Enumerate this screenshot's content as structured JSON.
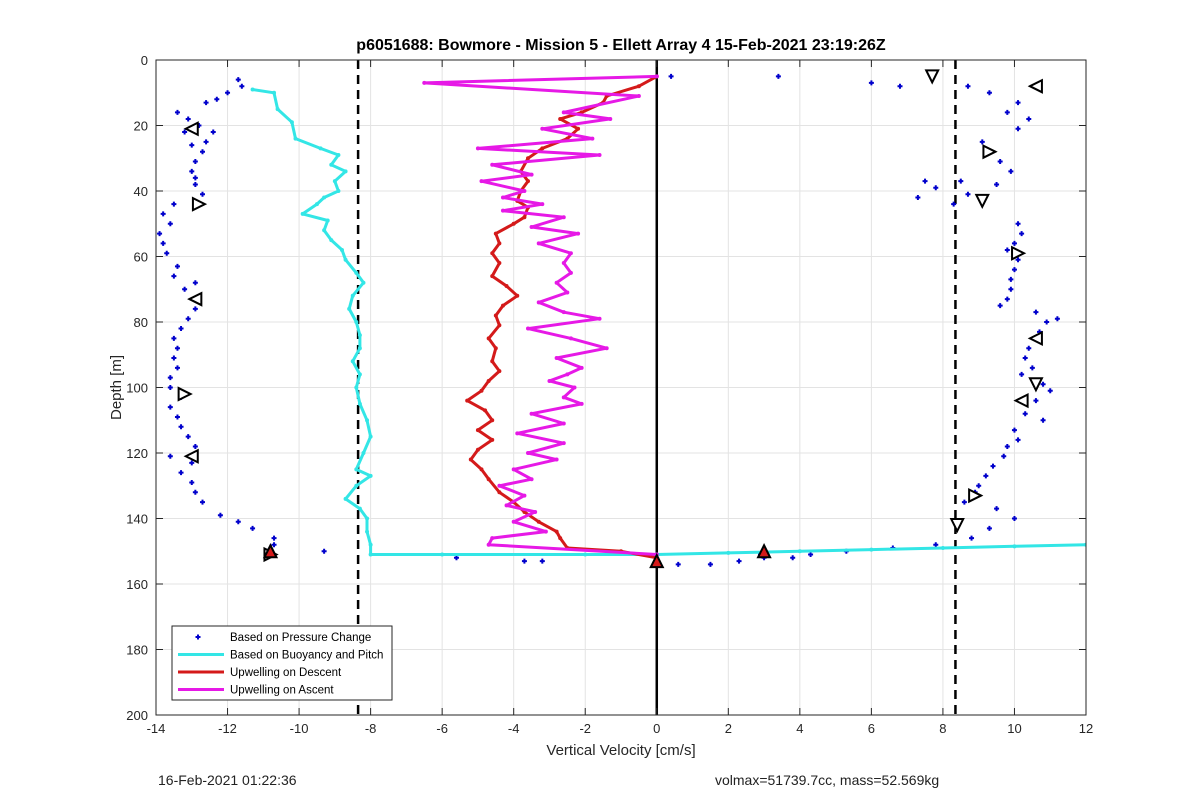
{
  "chart_data": {
    "type": "line",
    "title": "p6051688: Bowmore - Mission 5 - Ellett Array 4 15-Feb-2021 23:19:26Z",
    "xlabel": "Vertical Velocity [cm/s]",
    "ylabel": "Depth [m]",
    "xlim": [
      -14,
      12
    ],
    "ylim": [
      0,
      200
    ],
    "y_reversed": true,
    "grid": true,
    "xticks": [
      -14,
      -12,
      -10,
      -8,
      -6,
      -4,
      -2,
      0,
      2,
      4,
      6,
      8,
      10,
      12
    ],
    "yticks": [
      0,
      20,
      40,
      60,
      80,
      100,
      120,
      140,
      160,
      180,
      200
    ],
    "vlines": [
      {
        "x": -8.35,
        "style": "dashed"
      },
      {
        "x": 0,
        "style": "solid"
      },
      {
        "x": 8.35,
        "style": "dashed"
      }
    ],
    "legend_position": "bottom-left",
    "legend": [
      "Based on Pressure Change",
      "Based on Buoyancy and Pitch",
      "Upwelling on Descent",
      "Upwelling on Ascent"
    ],
    "series": [
      {
        "name": "Based on Pressure Change",
        "kind": "scatter",
        "color": "#0000cc",
        "points": [
          [
            -11.7,
            6
          ],
          [
            -11.6,
            8
          ],
          [
            -12.0,
            10
          ],
          [
            -12.3,
            12
          ],
          [
            -12.6,
            13
          ],
          [
            -13.4,
            16
          ],
          [
            -13.1,
            18
          ],
          [
            -12.8,
            20
          ],
          [
            -13.2,
            22
          ],
          [
            -12.4,
            22
          ],
          [
            -12.6,
            25
          ],
          [
            -13.0,
            26
          ],
          [
            -12.7,
            28
          ],
          [
            -12.9,
            31
          ],
          [
            -13.0,
            34
          ],
          [
            -12.9,
            36
          ],
          [
            -12.9,
            38
          ],
          [
            -12.7,
            41
          ],
          [
            -13.5,
            44
          ],
          [
            -13.8,
            47
          ],
          [
            -13.6,
            50
          ],
          [
            -13.9,
            53
          ],
          [
            -13.8,
            56
          ],
          [
            -13.7,
            59
          ],
          [
            -13.4,
            63
          ],
          [
            -13.5,
            66
          ],
          [
            -12.9,
            68
          ],
          [
            -13.2,
            70
          ],
          [
            -12.9,
            73
          ],
          [
            -12.9,
            76
          ],
          [
            -13.1,
            79
          ],
          [
            -13.3,
            82
          ],
          [
            -13.5,
            85
          ],
          [
            -13.4,
            88
          ],
          [
            -13.5,
            91
          ],
          [
            -13.4,
            94
          ],
          [
            -13.6,
            97
          ],
          [
            -13.6,
            100
          ],
          [
            -13.3,
            103
          ],
          [
            -13.6,
            106
          ],
          [
            -13.4,
            109
          ],
          [
            -13.3,
            112
          ],
          [
            -13.1,
            115
          ],
          [
            -12.9,
            118
          ],
          [
            -13.6,
            121
          ],
          [
            -13.0,
            123
          ],
          [
            -13.3,
            126
          ],
          [
            -13.0,
            129
          ],
          [
            -12.9,
            132
          ],
          [
            -12.7,
            135
          ],
          [
            -12.2,
            139
          ],
          [
            -11.7,
            141
          ],
          [
            -11.3,
            143
          ],
          [
            -10.7,
            146
          ],
          [
            -10.7,
            148
          ],
          [
            -10.9,
            150
          ],
          [
            -9.3,
            150
          ],
          [
            -5.6,
            152
          ],
          [
            -3.7,
            153
          ],
          [
            -3.2,
            153
          ],
          [
            0.4,
            5
          ],
          [
            3.4,
            5
          ],
          [
            6.0,
            7
          ],
          [
            6.8,
            8
          ],
          [
            8.7,
            8
          ],
          [
            9.3,
            10
          ],
          [
            10.1,
            13
          ],
          [
            9.8,
            16
          ],
          [
            10.4,
            18
          ],
          [
            10.1,
            21
          ],
          [
            9.1,
            25
          ],
          [
            9.3,
            28
          ],
          [
            9.6,
            31
          ],
          [
            9.9,
            34
          ],
          [
            7.5,
            37
          ],
          [
            7.8,
            39
          ],
          [
            8.5,
            37
          ],
          [
            9.5,
            38
          ],
          [
            8.7,
            41
          ],
          [
            7.3,
            42
          ],
          [
            8.3,
            44
          ],
          [
            10.1,
            50
          ],
          [
            10.2,
            53
          ],
          [
            10.0,
            56
          ],
          [
            9.8,
            58
          ],
          [
            10.1,
            61
          ],
          [
            10.0,
            64
          ],
          [
            9.9,
            67
          ],
          [
            9.9,
            70
          ],
          [
            9.8,
            73
          ],
          [
            9.6,
            75
          ],
          [
            10.6,
            77
          ],
          [
            10.9,
            80
          ],
          [
            11.2,
            79
          ],
          [
            10.7,
            83
          ],
          [
            10.4,
            88
          ],
          [
            10.3,
            91
          ],
          [
            10.5,
            94
          ],
          [
            10.2,
            96
          ],
          [
            10.8,
            99
          ],
          [
            11.0,
            101
          ],
          [
            10.6,
            104
          ],
          [
            10.3,
            108
          ],
          [
            10.8,
            110
          ],
          [
            10.0,
            113
          ],
          [
            10.1,
            116
          ],
          [
            9.8,
            118
          ],
          [
            9.7,
            121
          ],
          [
            9.4,
            124
          ],
          [
            9.2,
            127
          ],
          [
            9.0,
            130
          ],
          [
            8.9,
            132
          ],
          [
            8.6,
            135
          ],
          [
            9.5,
            137
          ],
          [
            10.0,
            140
          ],
          [
            9.3,
            143
          ],
          [
            8.8,
            146
          ],
          [
            7.8,
            148
          ],
          [
            6.6,
            149
          ],
          [
            5.3,
            150
          ],
          [
            4.3,
            151
          ],
          [
            3.8,
            152
          ],
          [
            3.0,
            152
          ],
          [
            2.3,
            153
          ],
          [
            1.5,
            154
          ],
          [
            0.6,
            154
          ],
          [
            2.9,
            151
          ],
          [
            -10.8,
            151
          ]
        ]
      },
      {
        "name": "Based on Buoyancy and Pitch",
        "kind": "line",
        "color": "#33e6e6",
        "points": [
          [
            -11.3,
            9
          ],
          [
            -10.7,
            10
          ],
          [
            -10.6,
            15
          ],
          [
            -10.2,
            19
          ],
          [
            -10.1,
            24
          ],
          [
            -9.4,
            27
          ],
          [
            -8.9,
            29
          ],
          [
            -9.1,
            32
          ],
          [
            -8.7,
            34
          ],
          [
            -9.0,
            37
          ],
          [
            -8.9,
            40
          ],
          [
            -9.3,
            42
          ],
          [
            -9.5,
            44
          ],
          [
            -9.9,
            47
          ],
          [
            -9.2,
            49
          ],
          [
            -9.3,
            52
          ],
          [
            -9.1,
            55
          ],
          [
            -8.8,
            58
          ],
          [
            -8.7,
            61
          ],
          [
            -8.4,
            65
          ],
          [
            -8.2,
            68
          ],
          [
            -8.5,
            72
          ],
          [
            -8.6,
            76
          ],
          [
            -8.4,
            80
          ],
          [
            -8.3,
            84
          ],
          [
            -8.3,
            88
          ],
          [
            -8.5,
            92
          ],
          [
            -8.3,
            96
          ],
          [
            -8.4,
            100
          ],
          [
            -8.3,
            105
          ],
          [
            -8.1,
            110
          ],
          [
            -8.0,
            115
          ],
          [
            -8.2,
            120
          ],
          [
            -8.4,
            125
          ],
          [
            -8.0,
            127
          ],
          [
            -8.4,
            130
          ],
          [
            -8.7,
            134
          ],
          [
            -8.3,
            137
          ],
          [
            -8.1,
            140
          ],
          [
            -8.1,
            144
          ],
          [
            -8.0,
            148
          ],
          [
            -8.0,
            151
          ],
          [
            -6.0,
            151
          ],
          [
            -2.0,
            151
          ],
          [
            0,
            151
          ],
          [
            2.0,
            150.5
          ],
          [
            4.0,
            150
          ],
          [
            6.0,
            149.5
          ],
          [
            8.0,
            149
          ],
          [
            10.0,
            148.5
          ],
          [
            12.0,
            148
          ]
        ]
      },
      {
        "name": "Upwelling on Descent",
        "kind": "line",
        "color": "#d41a1a",
        "points": [
          [
            0,
            5
          ],
          [
            -0.5,
            8
          ],
          [
            -1.4,
            11
          ],
          [
            -1.5,
            13
          ],
          [
            -2.1,
            16
          ],
          [
            -2.7,
            18
          ],
          [
            -2.2,
            21
          ],
          [
            -2.5,
            24
          ],
          [
            -3.2,
            27
          ],
          [
            -3.6,
            30
          ],
          [
            -3.8,
            34
          ],
          [
            -3.6,
            37
          ],
          [
            -3.8,
            40
          ],
          [
            -3.9,
            43
          ],
          [
            -3.6,
            45
          ],
          [
            -3.7,
            48
          ],
          [
            -4.0,
            50
          ],
          [
            -4.5,
            53
          ],
          [
            -4.4,
            56
          ],
          [
            -4.6,
            59
          ],
          [
            -4.4,
            62
          ],
          [
            -4.6,
            66
          ],
          [
            -4.2,
            69
          ],
          [
            -3.9,
            72
          ],
          [
            -4.3,
            75
          ],
          [
            -4.5,
            78
          ],
          [
            -4.4,
            81
          ],
          [
            -4.7,
            85
          ],
          [
            -4.5,
            88
          ],
          [
            -4.6,
            92
          ],
          [
            -4.4,
            95
          ],
          [
            -4.7,
            98
          ],
          [
            -4.9,
            101
          ],
          [
            -5.3,
            104
          ],
          [
            -4.8,
            107
          ],
          [
            -4.6,
            110
          ],
          [
            -5.0,
            113
          ],
          [
            -4.6,
            116
          ],
          [
            -5.0,
            119
          ],
          [
            -5.2,
            122
          ],
          [
            -4.9,
            125
          ],
          [
            -4.7,
            128
          ],
          [
            -4.4,
            132
          ],
          [
            -4.0,
            135
          ],
          [
            -3.7,
            138
          ],
          [
            -3.3,
            141
          ],
          [
            -2.8,
            144
          ],
          [
            -2.7,
            146
          ],
          [
            -2.5,
            149
          ],
          [
            -1.0,
            150
          ],
          [
            0,
            152
          ]
        ]
      },
      {
        "name": "Upwelling on Ascent",
        "kind": "line",
        "color": "#e619e6",
        "points": [
          [
            0,
            5
          ],
          [
            -6.5,
            7
          ],
          [
            -0.5,
            11
          ],
          [
            -2.6,
            16
          ],
          [
            -1.3,
            18
          ],
          [
            -3.2,
            21
          ],
          [
            -1.8,
            24
          ],
          [
            -5.0,
            27
          ],
          [
            -1.6,
            29
          ],
          [
            -4.6,
            32
          ],
          [
            -3.5,
            35
          ],
          [
            -4.9,
            37
          ],
          [
            -3.7,
            40
          ],
          [
            -4.3,
            42
          ],
          [
            -3.2,
            44
          ],
          [
            -4.3,
            46
          ],
          [
            -2.6,
            48
          ],
          [
            -3.5,
            51
          ],
          [
            -2.2,
            53
          ],
          [
            -3.3,
            56
          ],
          [
            -2.4,
            59
          ],
          [
            -2.6,
            62
          ],
          [
            -2.4,
            65
          ],
          [
            -2.8,
            68
          ],
          [
            -2.5,
            71
          ],
          [
            -3.3,
            74
          ],
          [
            -2.6,
            77
          ],
          [
            -1.6,
            79
          ],
          [
            -3.6,
            82
          ],
          [
            -2.4,
            85
          ],
          [
            -1.4,
            88
          ],
          [
            -2.8,
            91
          ],
          [
            -2.1,
            94
          ],
          [
            -2.5,
            96
          ],
          [
            -3.0,
            98
          ],
          [
            -2.3,
            100
          ],
          [
            -2.6,
            103
          ],
          [
            -2.1,
            105
          ],
          [
            -3.5,
            108
          ],
          [
            -2.6,
            111
          ],
          [
            -3.9,
            114
          ],
          [
            -2.6,
            117
          ],
          [
            -3.6,
            120
          ],
          [
            -2.8,
            122
          ],
          [
            -4.0,
            125
          ],
          [
            -3.5,
            128
          ],
          [
            -4.4,
            130
          ],
          [
            -3.7,
            133
          ],
          [
            -4.2,
            136
          ],
          [
            -3.4,
            138
          ],
          [
            -4.0,
            141
          ],
          [
            -3.1,
            144
          ],
          [
            -4.6,
            146
          ],
          [
            -4.7,
            148
          ],
          [
            0,
            151
          ]
        ]
      }
    ],
    "turning_markers_left": [
      [
        -13.0,
        21
      ],
      [
        -12.8,
        44
      ],
      [
        -12.9,
        73
      ],
      [
        -13.2,
        102
      ],
      [
        -13.0,
        121
      ],
      [
        -10.8,
        151
      ]
    ],
    "turning_markers_right": [
      [
        7.7,
        5
      ],
      [
        10.6,
        8
      ],
      [
        9.3,
        28
      ],
      [
        9.1,
        43
      ],
      [
        10.1,
        59
      ],
      [
        10.6,
        85
      ],
      [
        10.6,
        99
      ],
      [
        10.2,
        104
      ],
      [
        8.9,
        133
      ],
      [
        8.4,
        142
      ]
    ],
    "endpoint_markers": [
      [
        3.0,
        150
      ],
      [
        0,
        153
      ],
      [
        -10.8,
        150
      ]
    ]
  },
  "footer": {
    "timestamp": "16-Feb-2021 01:22:36",
    "stats": "volmax=51739.7cc, mass=52.569kg"
  }
}
